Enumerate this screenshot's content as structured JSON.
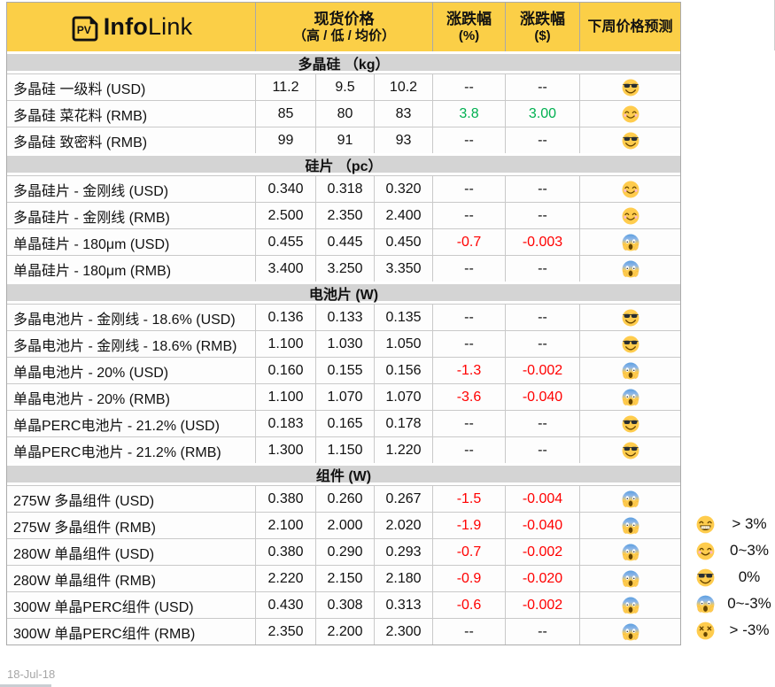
{
  "logo": {
    "badge": "PV",
    "name_bold": "Info",
    "name_light": "Link"
  },
  "header": {
    "price_title": "现货价格",
    "price_subtitle": "（高 / 低 / 均价）",
    "pct_title": "涨跌幅",
    "pct_unit": "(%)",
    "usd_title": "涨跌幅",
    "usd_unit": "($)",
    "forecast_title": "下周价格预测"
  },
  "sections": [
    {
      "title": "多晶硅 （kg）",
      "rows": [
        {
          "name": "多晶硅 一级料 (USD)",
          "high": "11.2",
          "low": "9.5",
          "avg": "10.2",
          "pct": "--",
          "usd": "--",
          "emoji": "sunglasses"
        },
        {
          "name": "多晶硅 菜花料 (RMB)",
          "high": "85",
          "low": "80",
          "avg": "83",
          "pct": "3.8",
          "usd": "3.00",
          "emoji": "smiling"
        },
        {
          "name": "多晶硅 致密料 (RMB)",
          "high": "99",
          "low": "91",
          "avg": "93",
          "pct": "--",
          "usd": "--",
          "emoji": "sunglasses"
        }
      ]
    },
    {
      "title": "硅片 （pc）",
      "rows": [
        {
          "name": "多晶硅片 - 金刚线 (USD)",
          "high": "0.340",
          "low": "0.318",
          "avg": "0.320",
          "pct": "--",
          "usd": "--",
          "emoji": "smiling"
        },
        {
          "name": "多晶硅片 - 金刚线 (RMB)",
          "high": "2.500",
          "low": "2.350",
          "avg": "2.400",
          "pct": "--",
          "usd": "--",
          "emoji": "smiling"
        },
        {
          "name": "单晶硅片 - 180μm (USD)",
          "high": "0.455",
          "low": "0.445",
          "avg": "0.450",
          "pct": "-0.7",
          "usd": "-0.003",
          "emoji": "scream"
        },
        {
          "name": "单晶硅片 - 180μm (RMB)",
          "high": "3.400",
          "low": "3.250",
          "avg": "3.350",
          "pct": "--",
          "usd": "--",
          "emoji": "scream"
        }
      ]
    },
    {
      "title": "电池片 (W)",
      "rows": [
        {
          "name": "多晶电池片 - 金刚线 - 18.6% (USD)",
          "high": "0.136",
          "low": "0.133",
          "avg": "0.135",
          "pct": "--",
          "usd": "--",
          "emoji": "sunglasses"
        },
        {
          "name": "多晶电池片 - 金刚线 - 18.6% (RMB)",
          "high": "1.100",
          "low": "1.030",
          "avg": "1.050",
          "pct": "--",
          "usd": "--",
          "emoji": "sunglasses"
        },
        {
          "name": "单晶电池片 - 20% (USD)",
          "high": "0.160",
          "low": "0.155",
          "avg": "0.156",
          "pct": "-1.3",
          "usd": "-0.002",
          "emoji": "scream"
        },
        {
          "name": "单晶电池片 - 20% (RMB)",
          "high": "1.100",
          "low": "1.070",
          "avg": "1.070",
          "pct": "-3.6",
          "usd": "-0.040",
          "emoji": "scream"
        },
        {
          "name": "单晶PERC电池片 - 21.2% (USD)",
          "high": "0.183",
          "low": "0.165",
          "avg": "0.178",
          "pct": "--",
          "usd": "--",
          "emoji": "sunglasses"
        },
        {
          "name": "单晶PERC电池片 - 21.2% (RMB)",
          "high": "1.300",
          "low": "1.150",
          "avg": "1.220",
          "pct": "--",
          "usd": "--",
          "emoji": "sunglasses"
        }
      ]
    },
    {
      "title": "组件 (W)",
      "rows": [
        {
          "name": "275W 多晶组件 (USD)",
          "high": "0.380",
          "low": "0.260",
          "avg": "0.267",
          "pct": "-1.5",
          "usd": "-0.004",
          "emoji": "scream"
        },
        {
          "name": "275W 多晶组件 (RMB)",
          "high": "2.100",
          "low": "2.000",
          "avg": "2.020",
          "pct": "-1.9",
          "usd": "-0.040",
          "emoji": "scream"
        },
        {
          "name": "280W 单晶组件 (USD)",
          "high": "0.380",
          "low": "0.290",
          "avg": "0.293",
          "pct": "-0.7",
          "usd": "-0.002",
          "emoji": "scream"
        },
        {
          "name": "280W 单晶组件 (RMB)",
          "high": "2.220",
          "low": "2.150",
          "avg": "2.180",
          "pct": "-0.9",
          "usd": "-0.020",
          "emoji": "scream"
        },
        {
          "name": "300W 单晶PERC组件 (USD)",
          "high": "0.430",
          "low": "0.308",
          "avg": "0.313",
          "pct": "-0.6",
          "usd": "-0.002",
          "emoji": "scream"
        },
        {
          "name": "300W 单晶PERC组件 (RMB)",
          "high": "2.350",
          "low": "2.200",
          "avg": "2.300",
          "pct": "--",
          "usd": "--",
          "emoji": "scream"
        }
      ]
    }
  ],
  "legend": [
    {
      "emoji": "grinning",
      "label": "> 3%"
    },
    {
      "emoji": "smiling",
      "label": "0~3%"
    },
    {
      "emoji": "sunglasses",
      "label": "0%"
    },
    {
      "emoji": "scream",
      "label": "0~-3%"
    },
    {
      "emoji": "dizzy",
      "label": "> -3%"
    }
  ],
  "footer": {
    "date": "18-Jul-18"
  },
  "colors": {
    "accent_yellow": "#FBCF47",
    "band_gray": "#D4D4D4",
    "up_green": "#00B050",
    "down_red": "#FF0000",
    "grid_gray": "#C9C9C9"
  }
}
